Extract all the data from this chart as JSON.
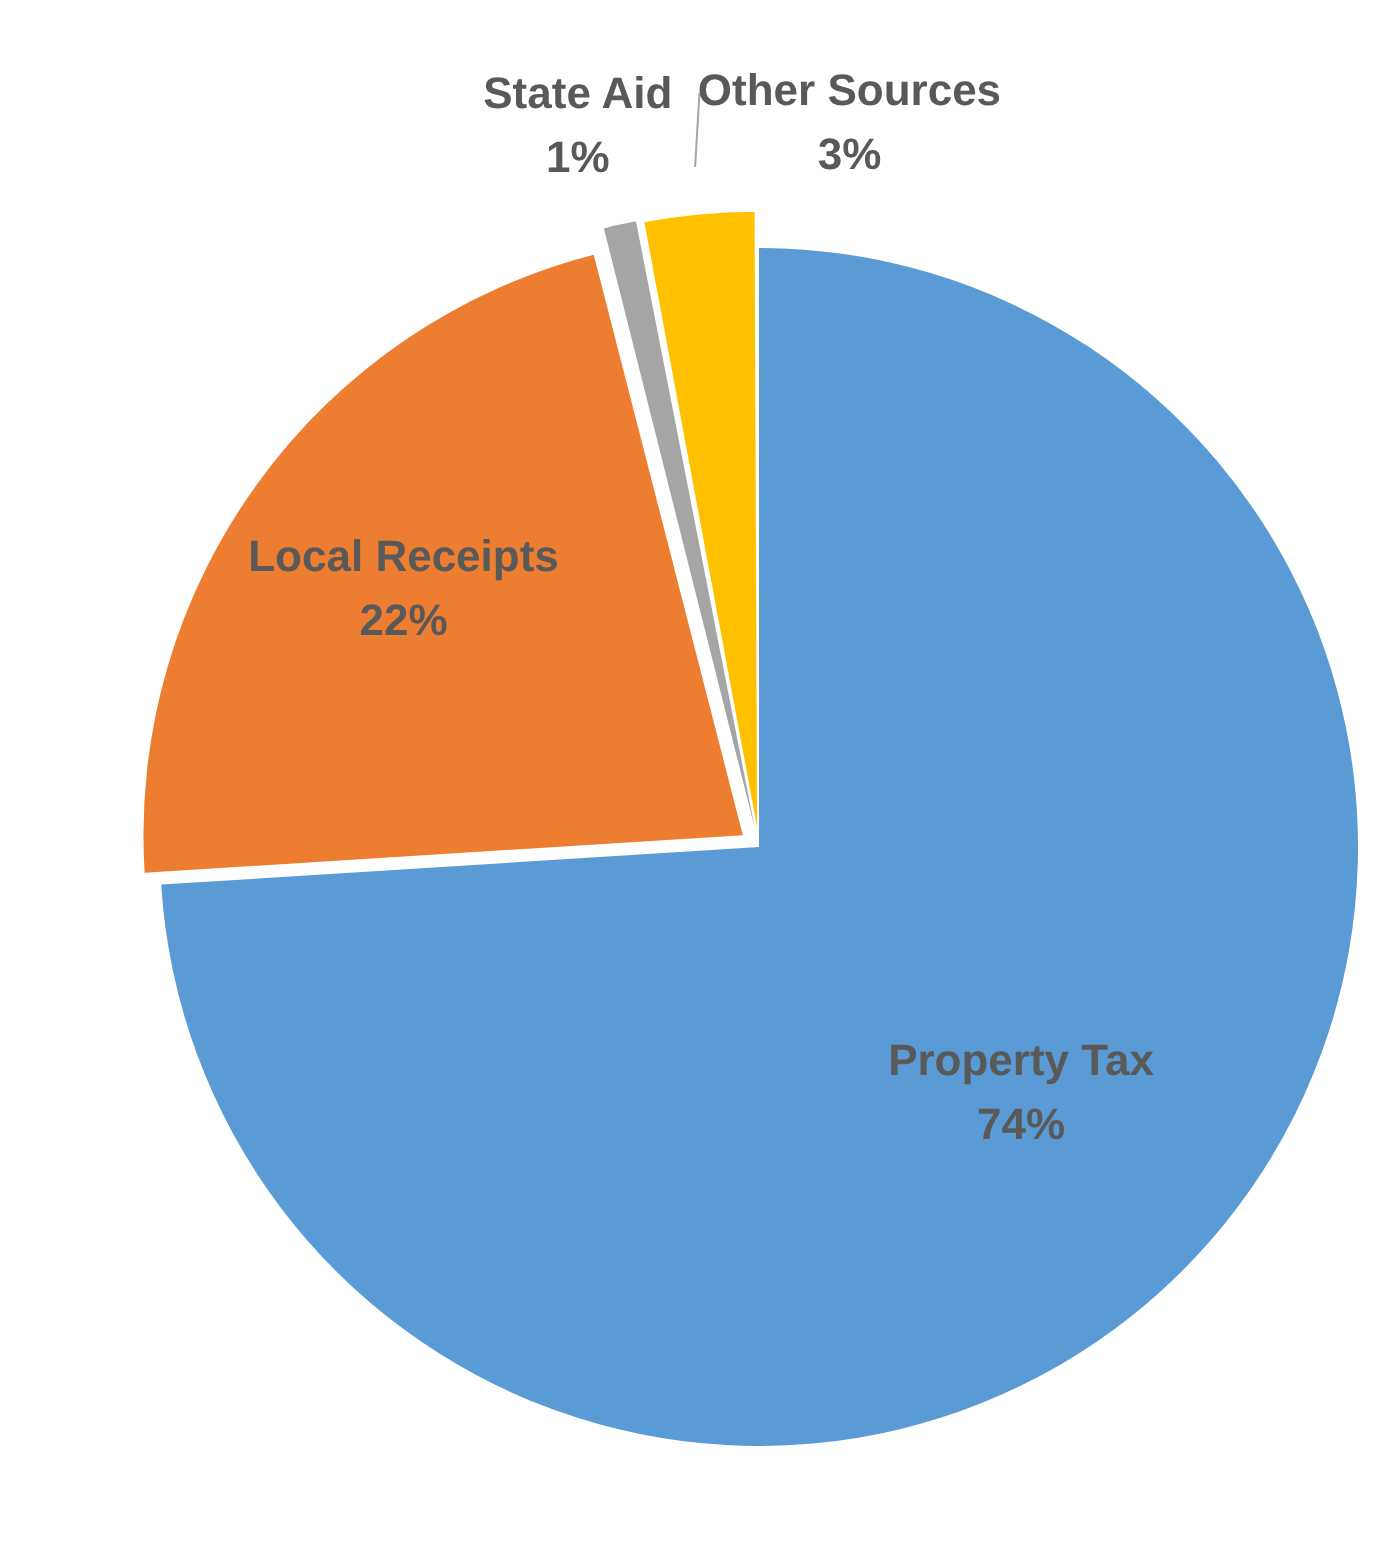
{
  "chart_data": {
    "type": "pie",
    "categories": [
      "Property Tax",
      "Local Receipts",
      "State Aid",
      "Other Sources"
    ],
    "values": [
      74,
      22,
      1,
      3
    ],
    "colors": [
      "#5b9bd5",
      "#ed7d31",
      "#a5a5a5",
      "#ffc000"
    ],
    "value_labels": [
      "74%",
      "22%",
      "1%",
      "3%"
    ],
    "legend": false
  }
}
